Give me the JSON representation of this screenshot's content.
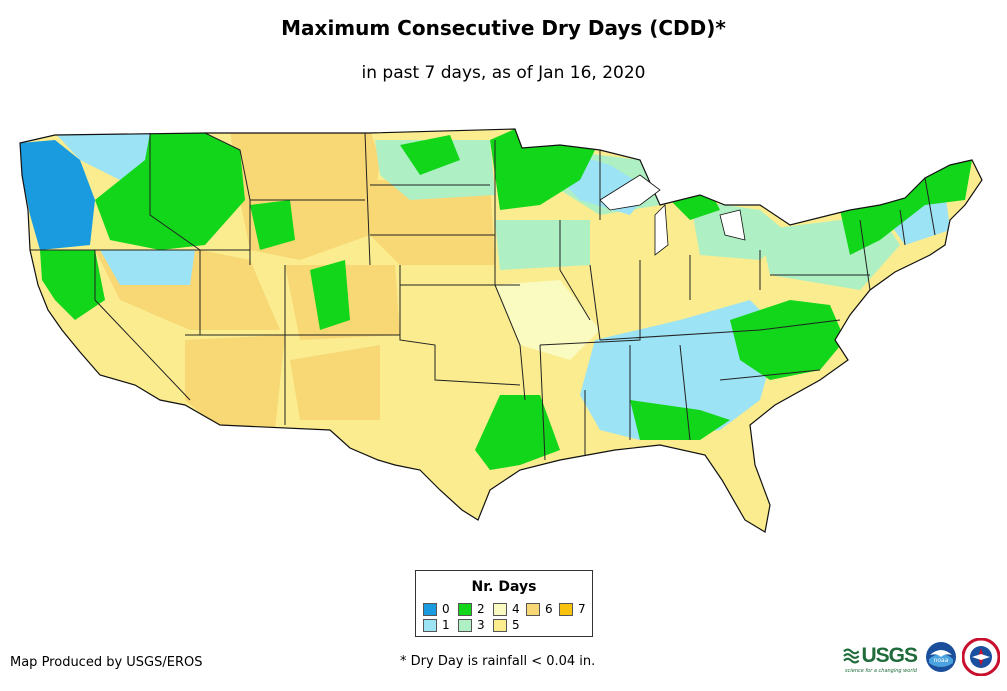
{
  "title": "Maximum Consecutive Dry Days (CDD)*",
  "subtitle": "in past 7 days, as of Jan 16, 2020",
  "legend": {
    "title": "Nr. Days",
    "items": [
      {
        "label": "0",
        "color": "#1a9be0"
      },
      {
        "label": "1",
        "color": "#9be3f5"
      },
      {
        "label": "2",
        "color": "#12d61a"
      },
      {
        "label": "3",
        "color": "#aef0c4"
      },
      {
        "label": "4",
        "color": "#fafbc0"
      },
      {
        "label": "5",
        "color": "#faec8f"
      },
      {
        "label": "6",
        "color": "#f8d775"
      },
      {
        "label": "7",
        "color": "#f9c20e"
      }
    ]
  },
  "credit": "Map Produced by USGS/EROS",
  "footnote": "* Dry Day is rainfall < 0.04 in.",
  "logos": {
    "usgs_word": "USGS",
    "usgs_tagline": "science for a changing world",
    "noaa_text": "noaa"
  }
}
